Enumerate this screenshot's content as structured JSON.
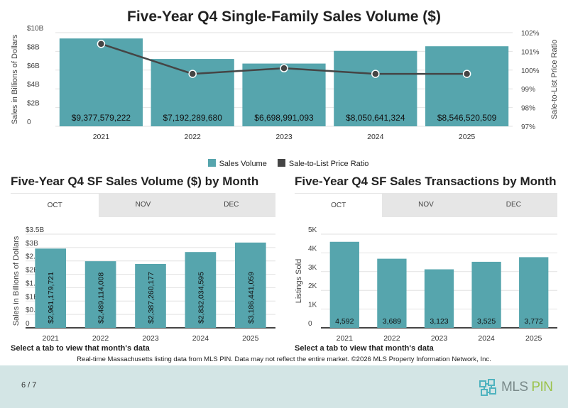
{
  "colors": {
    "bar": "#56a5ad",
    "line": "#454545",
    "footer": "#d3e5e5"
  },
  "chart_data": [
    {
      "type": "bar+line",
      "title": "Five-Year Q4 Single-Family Sales Volume ($)",
      "categories": [
        "2021",
        "2022",
        "2023",
        "2024",
        "2025"
      ],
      "series": [
        {
          "name": "Sales Volume",
          "type": "bar",
          "axis": "left",
          "values": [
            9377579222,
            7192289680,
            6698991093,
            8050641324,
            8546520509
          ],
          "labels": [
            "$9,377,579,222",
            "$7,192,289,680",
            "$6,698,991,093",
            "$8,050,641,324",
            "$8,546,520,509"
          ]
        },
        {
          "name": "Sale-to-List Price Ratio",
          "type": "line",
          "axis": "right",
          "values": [
            101.4,
            99.8,
            100.1,
            99.8,
            99.8
          ]
        }
      ],
      "ylabel": "Sales in Billions of Dollars",
      "ylabel_right": "Sale-to-List Price Ratio",
      "ylim": [
        0,
        10000000000
      ],
      "ylim_right": [
        97,
        102
      ],
      "yticks": [
        "0",
        "$2B",
        "$4B",
        "$6B",
        "$8B",
        "$10B"
      ],
      "yticks_right": [
        "97%",
        "98%",
        "99%",
        "100%",
        "101%",
        "102%"
      ],
      "grid": true,
      "legend": "bottom"
    },
    {
      "type": "bar",
      "title": "Five-Year Q4 SF Sales Volume ($) by Month",
      "tabs": [
        "OCT",
        "NOV",
        "DEC"
      ],
      "active_tab": "OCT",
      "categories": [
        "2021",
        "2022",
        "2023",
        "2024",
        "2025"
      ],
      "values": [
        2961179721,
        2489114008,
        2387260177,
        2832034595,
        3186441059
      ],
      "labels": [
        "$2,961,179,721",
        "$2,489,114,008",
        "$2,387,260,177",
        "$2,832,034,595",
        "$3,186,441,059"
      ],
      "ylabel": "Sales in Billions of Dollars",
      "ylim": [
        0,
        3500000000
      ],
      "yticks": [
        "0",
        "$0.5B",
        "$1B",
        "$1.5B",
        "$2B",
        "$2.5B",
        "$3B",
        "$3.5B"
      ],
      "grid": true
    },
    {
      "type": "bar",
      "title": "Five-Year Q4 SF Sales Transactions by Month",
      "tabs": [
        "OCT",
        "NOV",
        "DEC"
      ],
      "active_tab": "OCT",
      "categories": [
        "2021",
        "2022",
        "2023",
        "2024",
        "2025"
      ],
      "values": [
        4592,
        3689,
        3123,
        3525,
        3772
      ],
      "labels": [
        "4,592",
        "3,689",
        "3,123",
        "3,525",
        "3,772"
      ],
      "ylabel": "Listings Sold",
      "ylim": [
        0,
        5000
      ],
      "yticks": [
        "0",
        "1K",
        "2K",
        "3K",
        "4K",
        "5K"
      ],
      "grid": true
    }
  ],
  "hint": "Select a tab to view that month's data",
  "note": "Real-time Massachusetts listing data from MLS PIN. Data may not reflect the entire market. ©2026 MLS Property Information Network, Inc.",
  "footer": {
    "page": "6 / 7",
    "logo": "MLS PIN"
  }
}
